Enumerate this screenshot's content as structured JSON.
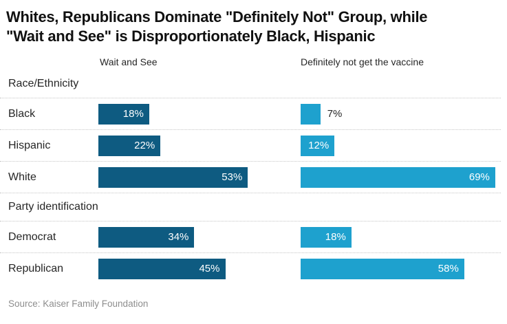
{
  "ui": {
    "title_lines": [
      "Whites, Republicans Dominate \"Definitely Not\" Group, while",
      "\"Wait and See\" is Disproportionately Black, Hispanic"
    ]
  },
  "chart_data": {
    "type": "bar",
    "orientation": "horizontal",
    "title": "Whites, Republicans Dominate \"Definitely Not\" Group, while \"Wait and See\" is Disproportionately Black, Hispanic",
    "unit": "%",
    "categories": [
      "Black",
      "Hispanic",
      "White",
      "Democrat",
      "Republican"
    ],
    "category_groups": [
      {
        "title": "Race/Ethnicity",
        "categories": [
          "Black",
          "Hispanic",
          "White"
        ]
      },
      {
        "title": "Party identification",
        "categories": [
          "Democrat",
          "Republican"
        ]
      }
    ],
    "series": [
      {
        "name": "Wait and See",
        "color": "#0e5b81",
        "values": [
          18,
          22,
          53,
          34,
          45
        ]
      },
      {
        "name": "Definitely not get the vaccine",
        "color": "#1ea1ce",
        "values": [
          7,
          12,
          69,
          18,
          58
        ]
      }
    ],
    "xlim": [
      0,
      72
    ],
    "value_labels": "on bar, right-aligned inside; outside when bar too short",
    "grid": "dotted horizontal row separators",
    "legend_position": "column headers above each bar group",
    "source": "Source: Kaiser Family Foundation"
  }
}
